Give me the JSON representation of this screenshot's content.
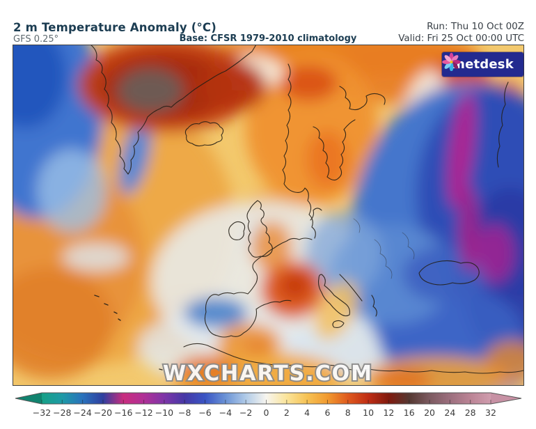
{
  "header": {
    "title": "2 m Temperature Anomaly (°C)",
    "model_label": "GFS 0.25°",
    "base_label": "Base: CFSR 1979-2010 climatology",
    "run_label": "Run: Thu 10 Oct 00Z",
    "valid_label": "Valid: Fri 25 Oct 00:00 UTC",
    "title_color": "#1c3d52",
    "meta_color": "#394047"
  },
  "branding": {
    "logo_text": "metdesk",
    "logo_bg": "#232a8f",
    "watermark": "WXCHARTS.COM"
  },
  "chart_data": {
    "type": "heatmap",
    "title": "2 m Temperature Anomaly (°C)",
    "model": "GFS 0.25°",
    "base_climatology": "CFSR 1979-2010",
    "run": "Thu 10 Oct 00Z",
    "valid": "Fri 25 Oct 00:00 UTC",
    "units": "°C",
    "region_shown": "Europe / North Atlantic / Greenland",
    "colorbar": {
      "orientation": "horizontal",
      "ticks": [
        -32,
        -28,
        -24,
        -20,
        -16,
        -12,
        -10,
        -8,
        -6,
        -4,
        -2,
        0,
        2,
        4,
        6,
        8,
        10,
        12,
        16,
        20,
        24,
        28,
        32
      ],
      "tick_labels": [
        "−32",
        "−28",
        "−24",
        "−20",
        "−16",
        "−12",
        "−10",
        "−8",
        "−6",
        "−4",
        "−2",
        "0",
        "2",
        "4",
        "6",
        "8",
        "10",
        "12",
        "16",
        "20",
        "24",
        "28",
        "32"
      ],
      "colors": [
        "#16a086",
        "#1e9aa6",
        "#2a72bc",
        "#2f3f9f",
        "#c92d7e",
        "#b03096",
        "#7e35a8",
        "#4638a6",
        "#3a55c4",
        "#6b93d6",
        "#b1cbe8",
        "#f7f5ef",
        "#fae49a",
        "#f6c254",
        "#f19a30",
        "#df5a1e",
        "#bf2d14",
        "#801a0e",
        "#553832",
        "#7c5a60",
        "#9c6f7e",
        "#bb8495",
        "#d09dae"
      ],
      "left_arrow_color": "#11836f",
      "right_arrow_color": "#c791a4"
    },
    "regions": [
      {
        "area": "Greenland",
        "anomaly_c": "+8 to +16"
      },
      {
        "area": "Baffin Island / Davis Strait (top-left)",
        "anomaly_c": "-2 to -8"
      },
      {
        "area": "SE Greenland coast",
        "anomaly_c": "-2 to -6"
      },
      {
        "area": "North Atlantic (west/central)",
        "anomaly_c": "+2 to +6"
      },
      {
        "area": "Atlantic near Iberia / Azores",
        "anomaly_c": "0 to -2"
      },
      {
        "area": "UK and Ireland",
        "anomaly_c": "+1 to +4"
      },
      {
        "area": "France",
        "anomaly_c": "+6 to +10"
      },
      {
        "area": "NW Iberia (Portugal / Galicia)",
        "anomaly_c": "-2 to -5"
      },
      {
        "area": "SE Spain",
        "anomaly_c": "+4 to +8"
      },
      {
        "area": "Scandinavia",
        "anomaly_c": "+4 to +8"
      },
      {
        "area": "Iceland",
        "anomaly_c": "+2 to +4"
      },
      {
        "area": "Central/Eastern Europe and Balkans",
        "anomaly_c": "-4 to -8"
      },
      {
        "area": "Western Russia / Ural band (magenta)",
        "anomaly_c": "-8 to -16"
      },
      {
        "area": "Black Sea / Ukraine / Turkey",
        "anomaly_c": "-6 to -12"
      },
      {
        "area": "Mediterranean Sea",
        "anomaly_c": "-1 to -3"
      },
      {
        "area": "North Africa",
        "anomaly_c": "+2 to +6"
      }
    ]
  }
}
